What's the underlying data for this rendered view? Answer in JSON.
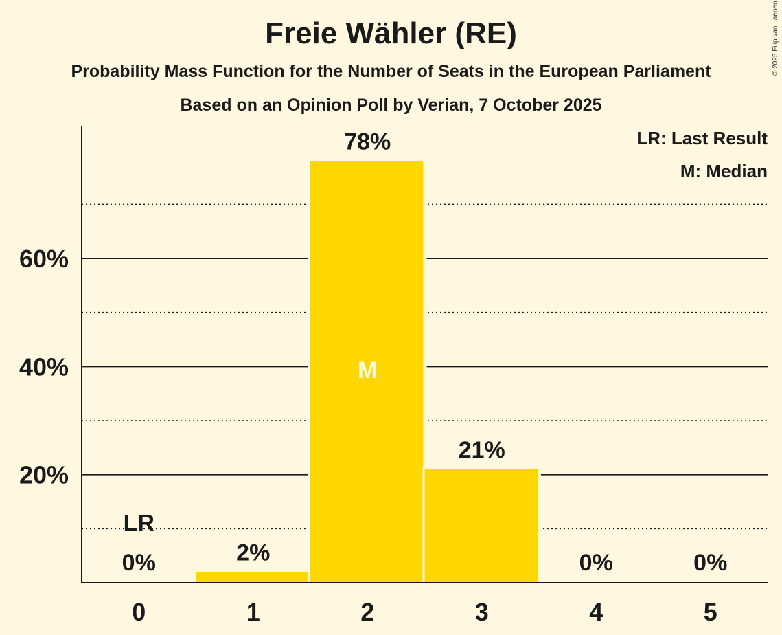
{
  "chart_data": {
    "type": "bar",
    "title": "Freie Wähler (RE)",
    "subtitle": "Probability Mass Function for the Number of Seats in the European Parliament",
    "subtitle2": "Based on an Opinion Poll by Verian, 7 October 2025",
    "copyright": "© 2025 Filip van Laenen",
    "categories": [
      "0",
      "1",
      "2",
      "3",
      "4",
      "5"
    ],
    "values": [
      0,
      2,
      78,
      21,
      0,
      0
    ],
    "value_labels": [
      "0%",
      "2%",
      "78%",
      "21%",
      "0%",
      "0%"
    ],
    "y_ticks": [
      20,
      40,
      60
    ],
    "y_tick_labels": [
      "20%",
      "40%",
      "60%"
    ],
    "y_minor_gridlines": [
      10,
      30,
      50,
      70
    ],
    "ylim": [
      0,
      85
    ],
    "median_index": 2,
    "median_label": "M",
    "last_result_index": 0,
    "last_result_label": "LR",
    "legend": [
      "LR: Last Result",
      "M: Median"
    ],
    "legend_position": "top-right",
    "colors": {
      "bar": "#FFD700",
      "background": "#FFF8E1",
      "axis": "#1a1a1a",
      "median_text": "#FFF8E1"
    }
  }
}
